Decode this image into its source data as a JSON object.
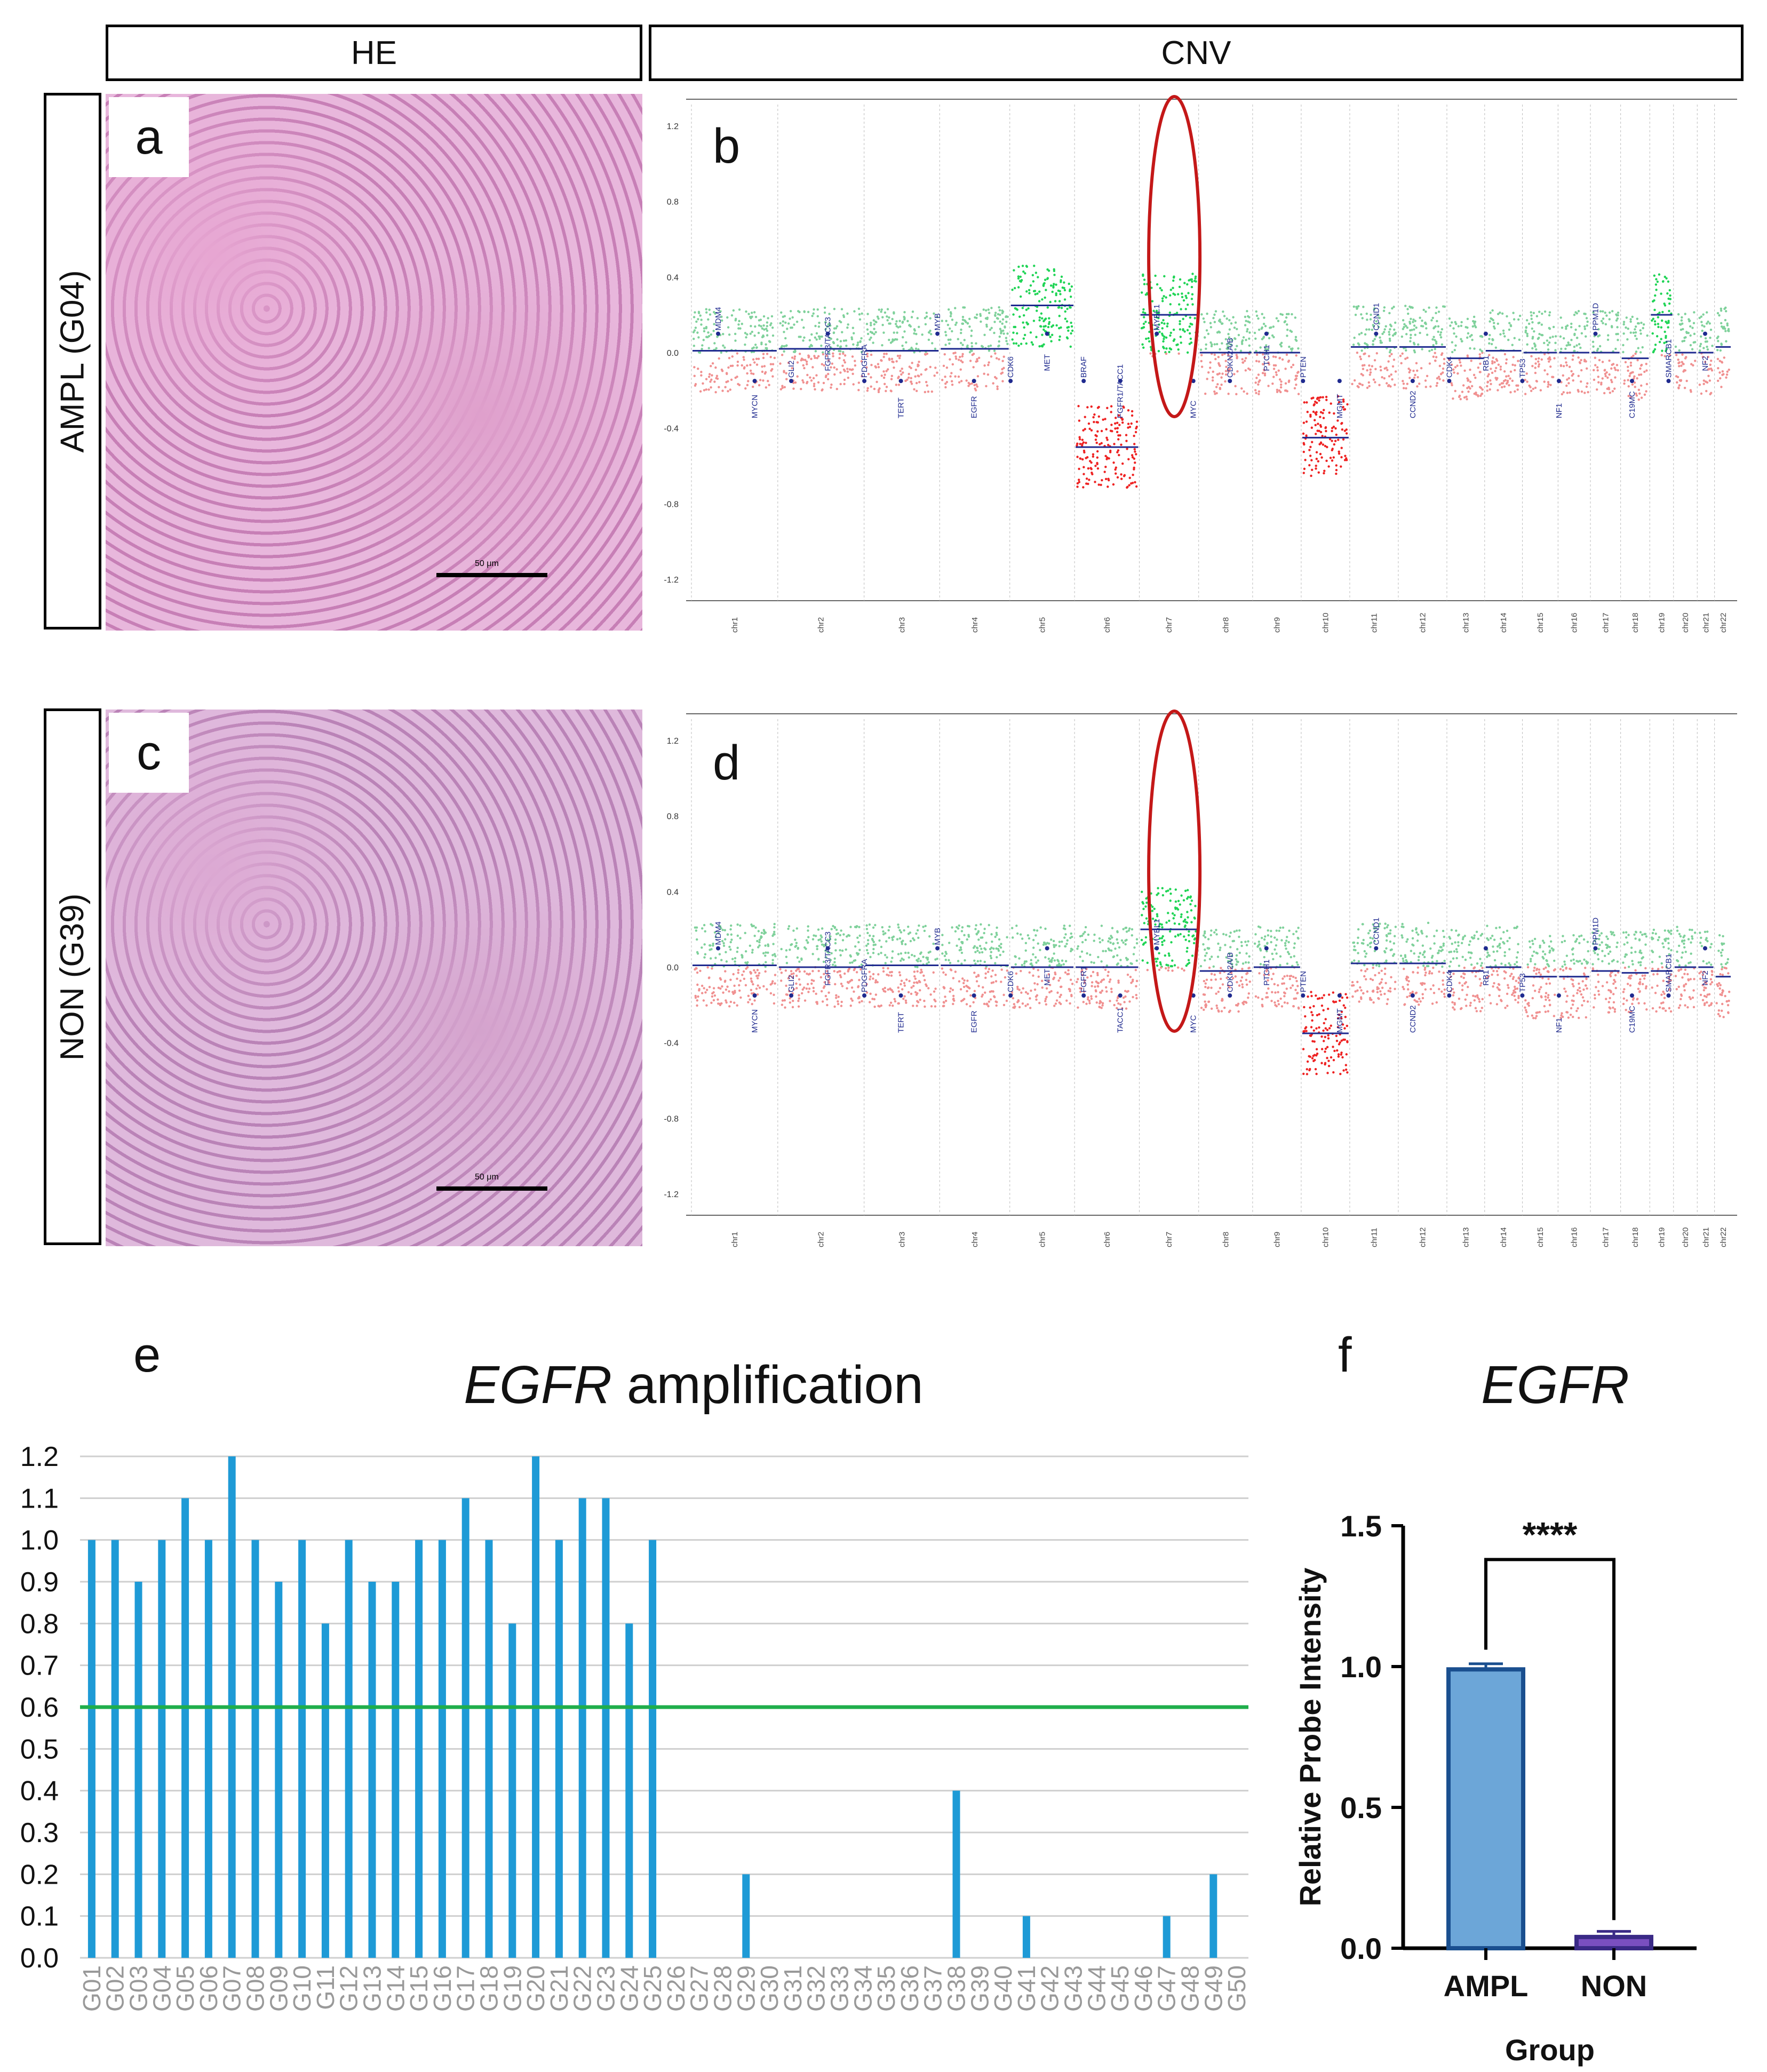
{
  "headers": {
    "he": "HE",
    "cnv": "CNV"
  },
  "rows": [
    {
      "label": "AMPL (G04)",
      "he_letter": "a",
      "cnv_letter": "b",
      "scale": "50 μm"
    },
    {
      "label": "NON (G39)",
      "he_letter": "c",
      "cnv_letter": "d",
      "scale": "50 μm"
    }
  ],
  "cnv_y_ticks": [
    "1.2",
    "0.8",
    "0.4",
    "0.0",
    "-0.4",
    "-0.8",
    "-1.2"
  ],
  "cnv_chromosomes": [
    "chr1",
    "chr2",
    "chr3",
    "chr4",
    "chr5",
    "chr6",
    "chr7",
    "chr8",
    "chr9",
    "chr10",
    "chr11",
    "chr12",
    "chr13",
    "chr14",
    "chr15",
    "chr16",
    "chr17",
    "chr18",
    "chr19",
    "chr20",
    "chr21",
    "chr22"
  ],
  "cnv_b_genes": [
    "MDM4",
    "MYCN",
    "GLI2",
    "FGFR3/TACC3",
    "PDGFRA",
    "TERT",
    "MYB",
    "EGFR",
    "CDK6",
    "MET",
    "BRAF",
    "FGFR1/TACC1",
    "MYBL1",
    "MYC",
    "CDKN2A/B",
    "PTCH1",
    "PTEN",
    "MGMT",
    "CCND1",
    "CCND2",
    "CDK4",
    "RB1",
    "TP53",
    "NF1",
    "PPM1D",
    "C19MC",
    "SMARCB1",
    "NF2"
  ],
  "cnv_d_genes": [
    "MDM4",
    "MYCN",
    "GLI2",
    "FGFR3/TACC3",
    "PDGFRA",
    "TERT",
    "MYB",
    "EGFR",
    "CDK6",
    "MET",
    "FGFR1",
    "TACC1",
    "MYBL1",
    "MYC",
    "CDKN2A/B",
    "PTCH1",
    "PTEN",
    "MGMT",
    "CCND1",
    "CCND2",
    "CDK4",
    "RB1",
    "TP53",
    "NF1",
    "PPM1D",
    "C19MC",
    "SMARCB1",
    "NF2"
  ],
  "panel_e": {
    "letter": "e"
  },
  "panel_f": {
    "letter": "f"
  },
  "chart_data": [
    {
      "type": "bar",
      "title_italic": "EGFR",
      "title_rest": "amplification",
      "categories": [
        "G01",
        "G02",
        "G03",
        "G04",
        "G05",
        "G06",
        "G07",
        "G08",
        "G09",
        "G10",
        "G11",
        "G12",
        "G13",
        "G14",
        "G15",
        "G16",
        "G17",
        "G18",
        "G19",
        "G20",
        "G21",
        "G22",
        "G23",
        "G24",
        "G25",
        "G26",
        "G27",
        "G28",
        "G29",
        "G30",
        "G31",
        "G32",
        "G33",
        "G34",
        "G35",
        "G36",
        "G37",
        "G38",
        "G39",
        "G40",
        "G41",
        "G42",
        "G43",
        "G44",
        "G45",
        "G46",
        "G47",
        "G48",
        "G49",
        "G50"
      ],
      "values": [
        1.0,
        1.0,
        0.9,
        1.0,
        1.1,
        1.0,
        1.2,
        1.0,
        0.9,
        1.0,
        0.8,
        1.0,
        0.9,
        0.9,
        1.0,
        1.0,
        1.1,
        1.0,
        0.8,
        1.2,
        1.0,
        1.1,
        1.1,
        0.8,
        1.0,
        0,
        0,
        0,
        0.2,
        0,
        0,
        0,
        0,
        0,
        0,
        0,
        0,
        0.4,
        0,
        0,
        0.1,
        0,
        0,
        0,
        0,
        0,
        0.1,
        0,
        0.2,
        0
      ],
      "threshold": 0.6,
      "ylim": [
        0,
        1.2
      ],
      "yticks": [
        "0.0",
        "0.1",
        "0.2",
        "0.3",
        "0.4",
        "0.5",
        "0.6",
        "0.7",
        "0.8",
        "0.9",
        "1.0",
        "1.1",
        "1.2"
      ],
      "grid": true,
      "colors": {
        "bar": "#1e9ad6",
        "threshold": "#1fae4b",
        "grid": "#cfcfcf"
      }
    },
    {
      "type": "bar",
      "title_italic": "EGFR",
      "categories": [
        "AMPL",
        "NON"
      ],
      "values": [
        0.99,
        0.04
      ],
      "errors": [
        0.02,
        0.02
      ],
      "xlabel": "Group",
      "ylabel": "Relative Probe Intensity",
      "ylim": [
        0,
        1.5
      ],
      "yticks": [
        "0.0",
        "0.5",
        "1.0",
        "1.5"
      ],
      "significance": "****",
      "colors": {
        "ampl_fill": "#6ca6d8",
        "ampl_edge": "#1a4f8f",
        "non_fill": "#7a4fc0",
        "non_edge": "#3a2a86"
      }
    }
  ]
}
